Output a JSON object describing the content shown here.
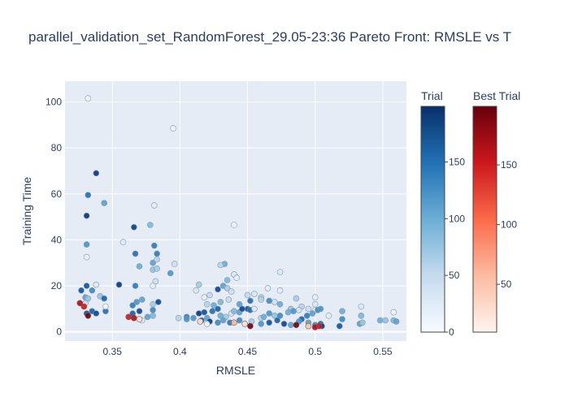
{
  "chart_data": {
    "type": "scatter",
    "title": "parallel_validation_set_RandomForest_29.05-23:36 Pareto Front: RMSLE vs T",
    "xlabel": "RMSLE",
    "ylabel": "Training Time",
    "xlim": [
      0.315,
      0.5675
    ],
    "ylim": [
      -4,
      109
    ],
    "xticks": [
      0.35,
      0.4,
      0.45,
      0.5,
      0.55
    ],
    "xtick_labels": [
      "0.35",
      "0.4",
      "0.45",
      "0.5",
      "0.55"
    ],
    "yticks": [
      0,
      20,
      40,
      60,
      80,
      100
    ],
    "ytick_labels": [
      "0",
      "20",
      "40",
      "60",
      "80",
      "100"
    ],
    "grid": true,
    "colorbars": [
      {
        "title": "Trial",
        "colorscale": "Blues",
        "range": [
          0,
          199
        ],
        "ticks": [
          0,
          50,
          100,
          150
        ],
        "tick_labels": [
          "0",
          "50",
          "100",
          "150"
        ]
      },
      {
        "title": "Best Trial",
        "colorscale": "Reds",
        "range": [
          10,
          199
        ],
        "ticks": [
          50,
          100,
          150
        ],
        "tick_labels": [
          "50",
          "100",
          "150"
        ]
      }
    ],
    "series": [
      {
        "colorscale": "Blues",
        "points": [
          [
            0.332,
            101.5,
            8
          ],
          [
            0.395,
            88.5,
            12
          ],
          [
            0.338,
            69,
            190
          ],
          [
            0.332,
            59.5,
            150
          ],
          [
            0.344,
            56,
            110
          ],
          [
            0.381,
            55,
            20
          ],
          [
            0.331,
            50.5,
            195
          ],
          [
            0.44,
            46.5,
            5
          ],
          [
            0.366,
            45.5,
            185
          ],
          [
            0.378,
            46.5,
            90
          ],
          [
            0.358,
            39,
            25
          ],
          [
            0.381,
            37.5,
            140
          ],
          [
            0.331,
            38,
            120
          ],
          [
            0.383,
            34,
            140
          ],
          [
            0.367,
            34,
            150
          ],
          [
            0.38,
            30,
            110
          ],
          [
            0.383,
            31.5,
            60
          ],
          [
            0.396,
            29.5,
            40
          ],
          [
            0.331,
            32.5,
            15
          ],
          [
            0.37,
            28.5,
            100
          ],
          [
            0.38,
            27,
            80
          ],
          [
            0.383,
            27.5,
            70
          ],
          [
            0.393,
            25.5,
            120
          ],
          [
            0.433,
            29.5,
            100
          ],
          [
            0.43,
            29,
            60
          ],
          [
            0.44,
            25,
            30
          ],
          [
            0.474,
            26,
            30
          ],
          [
            0.442,
            23.5,
            20
          ],
          [
            0.435,
            22.5,
            90
          ],
          [
            0.414,
            20.5,
            70
          ],
          [
            0.338,
            20.5,
            30
          ],
          [
            0.331,
            20,
            170
          ],
          [
            0.335,
            18,
            130
          ],
          [
            0.327,
            18,
            170
          ],
          [
            0.355,
            20.5,
            190
          ],
          [
            0.367,
            20,
            140
          ],
          [
            0.38,
            20,
            20
          ],
          [
            0.382,
            22,
            40
          ],
          [
            0.412,
            18,
            30
          ],
          [
            0.418,
            15,
            20
          ],
          [
            0.422,
            16,
            50
          ],
          [
            0.428,
            18.5,
            180
          ],
          [
            0.432,
            20,
            110
          ],
          [
            0.435,
            19,
            70
          ],
          [
            0.438,
            17.5,
            40
          ],
          [
            0.45,
            16,
            50
          ],
          [
            0.455,
            16.5,
            30
          ],
          [
            0.46,
            15,
            70
          ],
          [
            0.465,
            19,
            20
          ],
          [
            0.47,
            13,
            40
          ],
          [
            0.474,
            18,
            20
          ],
          [
            0.486,
            14.5,
            70
          ],
          [
            0.5,
            15,
            20
          ],
          [
            0.5,
            12,
            30
          ],
          [
            0.534,
            11,
            30
          ],
          [
            0.341,
            15.5,
            80
          ],
          [
            0.344,
            14.5,
            160
          ],
          [
            0.33,
            15,
            110
          ],
          [
            0.33,
            12.5,
            50
          ],
          [
            0.332,
            14.5,
            80
          ],
          [
            0.365,
            11.5,
            140
          ],
          [
            0.368,
            13,
            120
          ],
          [
            0.372,
            14,
            110
          ],
          [
            0.38,
            12,
            70
          ],
          [
            0.384,
            13,
            180
          ],
          [
            0.42,
            12,
            60
          ],
          [
            0.425,
            11.5,
            100
          ],
          [
            0.43,
            13,
            90
          ],
          [
            0.436,
            14,
            50
          ],
          [
            0.444,
            12,
            110
          ],
          [
            0.452,
            13.5,
            150
          ],
          [
            0.46,
            14,
            60
          ],
          [
            0.466,
            13.5,
            130
          ],
          [
            0.474,
            12,
            100
          ],
          [
            0.482,
            10,
            80
          ],
          [
            0.49,
            11,
            60
          ],
          [
            0.495,
            10,
            40
          ],
          [
            0.5,
            9.5,
            20
          ],
          [
            0.52,
            9,
            100
          ],
          [
            0.335,
            9,
            160
          ],
          [
            0.338,
            8,
            180
          ],
          [
            0.331,
            8,
            170
          ],
          [
            0.345,
            9,
            150
          ],
          [
            0.365,
            8,
            160
          ],
          [
            0.37,
            9,
            180
          ],
          [
            0.376,
            6.5,
            110
          ],
          [
            0.38,
            9.5,
            130
          ],
          [
            0.38,
            7,
            90
          ],
          [
            0.405,
            6.5,
            140
          ],
          [
            0.41,
            6,
            120
          ],
          [
            0.414,
            8,
            190
          ],
          [
            0.418,
            8.5,
            170
          ],
          [
            0.42,
            6,
            110
          ],
          [
            0.424,
            9,
            150
          ],
          [
            0.428,
            10,
            160
          ],
          [
            0.43,
            7,
            100
          ],
          [
            0.434,
            6.5,
            70
          ],
          [
            0.438,
            8,
            40
          ],
          [
            0.44,
            9,
            90
          ],
          [
            0.444,
            8.5,
            110
          ],
          [
            0.446,
            10,
            180
          ],
          [
            0.45,
            10,
            170
          ],
          [
            0.452,
            9.5,
            150
          ],
          [
            0.455,
            10,
            30
          ],
          [
            0.46,
            6,
            60
          ],
          [
            0.462,
            6.5,
            100
          ],
          [
            0.466,
            8,
            120
          ],
          [
            0.47,
            7,
            80
          ],
          [
            0.474,
            7,
            130
          ],
          [
            0.48,
            8.5,
            100
          ],
          [
            0.484,
            9,
            120
          ],
          [
            0.488,
            9.5,
            40
          ],
          [
            0.49,
            5.5,
            160
          ],
          [
            0.494,
            7,
            140
          ],
          [
            0.498,
            8,
            110
          ],
          [
            0.502,
            9.5,
            130
          ],
          [
            0.504,
            10,
            120
          ],
          [
            0.51,
            7,
            20
          ],
          [
            0.52,
            5.5,
            130
          ],
          [
            0.534,
            7,
            90
          ],
          [
            0.548,
            5,
            100
          ],
          [
            0.552,
            5,
            80
          ],
          [
            0.558,
            5,
            90
          ],
          [
            0.56,
            4.5,
            110
          ],
          [
            0.558,
            8.5,
            10
          ],
          [
            0.533,
            3.5,
            110
          ],
          [
            0.535,
            4,
            80
          ],
          [
            0.518,
            2.5,
            170
          ],
          [
            0.5,
            3,
            130
          ],
          [
            0.504,
            3.5,
            150
          ],
          [
            0.505,
            2.5,
            190
          ],
          [
            0.495,
            4,
            110
          ],
          [
            0.488,
            4.5,
            120
          ],
          [
            0.482,
            3,
            110
          ],
          [
            0.477,
            3.5,
            180
          ],
          [
            0.472,
            5,
            160
          ],
          [
            0.466,
            4,
            170
          ],
          [
            0.46,
            3.5,
            120
          ],
          [
            0.453,
            4.5,
            70
          ],
          [
            0.448,
            3.5,
            150
          ],
          [
            0.444,
            5,
            130
          ],
          [
            0.437,
            4,
            140
          ],
          [
            0.432,
            5,
            110
          ],
          [
            0.428,
            4,
            130
          ],
          [
            0.422,
            4.5,
            190
          ],
          [
            0.416,
            5,
            160
          ],
          [
            0.405,
            5.5,
            120
          ],
          [
            0.399,
            6,
            60
          ],
          [
            0.372,
            5,
            30
          ],
          [
            0.42,
            3.5,
            10
          ],
          [
            0.345,
            11,
            10
          ]
        ]
      },
      {
        "colorscale": "Reds",
        "points": [
          [
            0.326,
            12.5,
            170
          ],
          [
            0.329,
            11,
            150
          ],
          [
            0.332,
            7,
            195
          ],
          [
            0.362,
            6.5,
            150
          ],
          [
            0.366,
            6,
            170
          ],
          [
            0.37,
            5.5,
            30
          ],
          [
            0.415,
            4.5,
            30
          ],
          [
            0.44,
            4,
            60
          ],
          [
            0.448,
            3.5,
            20
          ],
          [
            0.452,
            2.5,
            195
          ],
          [
            0.486,
            3,
            195
          ],
          [
            0.495,
            2.5,
            50
          ],
          [
            0.5,
            2,
            170
          ],
          [
            0.503,
            2.5,
            150
          ]
        ]
      }
    ]
  }
}
